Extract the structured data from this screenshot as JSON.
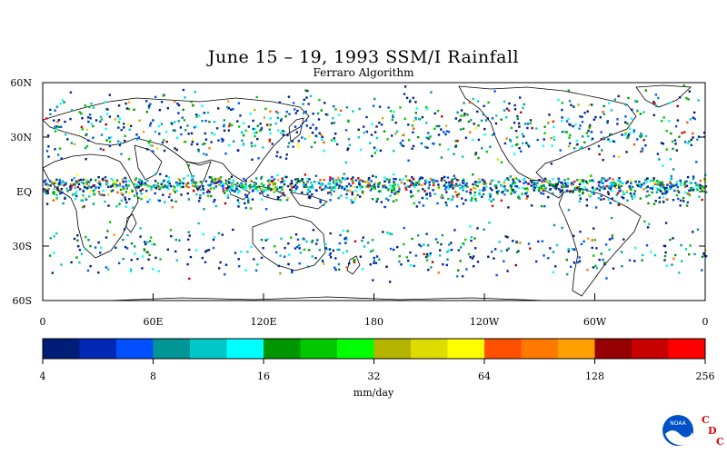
{
  "title": "June 15 – 19, 1993 SSM/I Rainfall",
  "subtitle": "Ferraro Algorithm",
  "map": {
    "lat_labels": [
      "60N",
      "30N",
      "EQ",
      "30S",
      "60S"
    ],
    "lon_labels": [
      "0",
      "60E",
      "120E",
      "180",
      "120W",
      "60W",
      "0"
    ],
    "lat_range": [
      -60,
      60
    ],
    "lon_range": [
      0,
      360
    ]
  },
  "colorbar": {
    "colors": [
      "#001e78",
      "#0028b4",
      "#0050ff",
      "#009696",
      "#00c8c8",
      "#00ffff",
      "#009600",
      "#00c800",
      "#00ff00",
      "#b4b400",
      "#dcdc00",
      "#ffff00",
      "#ff5000",
      "#ff7800",
      "#ffa000",
      "#960000",
      "#c80000",
      "#ff0000"
    ],
    "tick_labels": [
      "4",
      "8",
      "16",
      "32",
      "64",
      "128",
      "256"
    ],
    "unit": "mm/day"
  },
  "logo": {
    "agency": "NOAA",
    "letters": [
      "C",
      "D",
      "C"
    ]
  }
}
